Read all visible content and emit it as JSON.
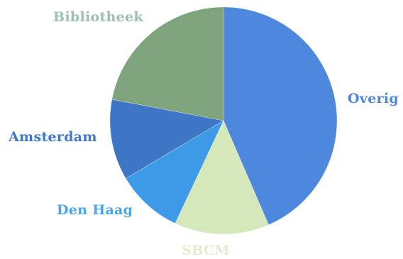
{
  "chart_data": {
    "type": "pie",
    "title": "",
    "legend": "none",
    "start_direction": "top",
    "rotation": "clockwise",
    "slices": [
      {
        "label": "Overig",
        "value": 43.5,
        "color": "#4e88dc",
        "label_color": "#4e88dc"
      },
      {
        "label": "SBCM",
        "value": 13.5,
        "color": "#d5e8b9",
        "label_color": "#e4eccb"
      },
      {
        "label": "Den Haag",
        "value": 9.5,
        "color": "#3c9ae6",
        "label_color": "#4aa6e8"
      },
      {
        "label": "Amsterdam",
        "value": 11.5,
        "color": "#3e75c4",
        "label_color": "#3f78c8"
      },
      {
        "label": "Bibliotheek",
        "value": 22.0,
        "color": "#7fa37c",
        "label_color": "#9cc0b1"
      }
    ]
  }
}
